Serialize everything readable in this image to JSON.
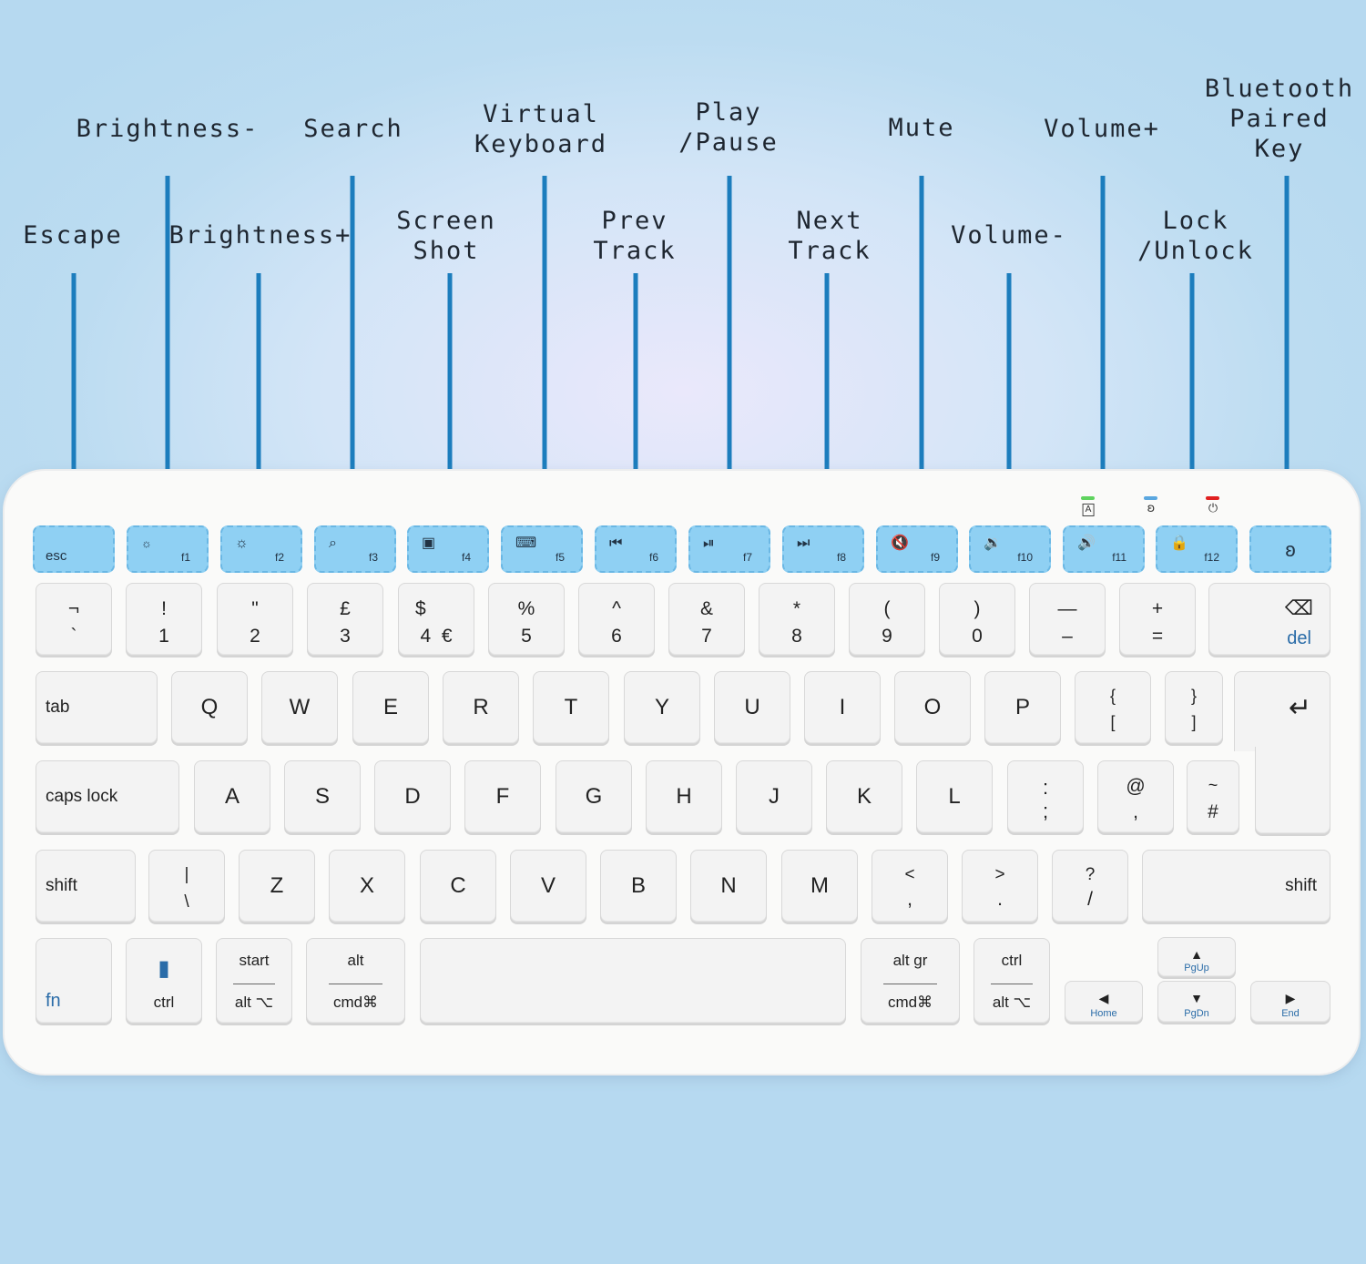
{
  "callouts": {
    "escape": "Escape",
    "brightness_minus": "Brightness-",
    "brightness_plus": "Brightness+",
    "search": "Search",
    "screen_shot": "Screen\nShot",
    "virtual_keyboard": "Virtual\nKeyboard",
    "prev_track": "Prev\nTrack",
    "play_pause": "Play\n/Pause",
    "next_track": "Next\nTrack",
    "mute": "Mute",
    "volume_minus": "Volume-",
    "volume_plus": "Volume+",
    "lock_unlock": "Lock\n/Unlock",
    "bluetooth": "Bluetooth\nPaired\nKey"
  },
  "colors": {
    "callout_line": "#1c7dbd",
    "function_key": "#8fd0f3",
    "led_caps": "#5fd35f",
    "led_bluetooth": "#5aa7e0",
    "led_power": "#e02020"
  },
  "fkeys": {
    "esc": "esc",
    "f1": "f1",
    "f2": "f2",
    "f3": "f3",
    "f4": "f4",
    "f5": "f5",
    "f6": "f6",
    "f7": "f7",
    "f8": "f8",
    "f9": "f9",
    "f10": "f10",
    "f11": "f11",
    "f12": "f12"
  },
  "icons": {
    "brightness_down": "☼",
    "brightness_up": "☼",
    "search": "⌕",
    "camera": "▣",
    "keyboard": "⌨",
    "prev": "⏮",
    "play_pause": "⏯",
    "next": "⏭",
    "mute": "🔇",
    "vol_down": "🔉",
    "vol_up": "🔊",
    "lock": "🔒",
    "bluetooth": "ʚ",
    "caps_led": "A",
    "bt_led": "ʚ",
    "power_led": "⏻",
    "backspace": "⌫",
    "enter": "↵",
    "battery": "▮"
  },
  "row1": {
    "k0": {
      "top": "¬",
      "bot": "`"
    },
    "k1": {
      "top": "!",
      "bot": "1"
    },
    "k2": {
      "top": "\"",
      "bot": "2"
    },
    "k3": {
      "top": "£",
      "bot": "3"
    },
    "k4": {
      "top": "$",
      "bot": "4  €"
    },
    "k5": {
      "top": "%",
      "bot": "5"
    },
    "k6": {
      "top": "^",
      "bot": "6"
    },
    "k7": {
      "top": "&",
      "bot": "7"
    },
    "k8": {
      "top": "*",
      "bot": "8"
    },
    "k9": {
      "top": "(",
      "bot": "9"
    },
    "k10": {
      "top": ")",
      "bot": "0"
    },
    "k11": {
      "top": "—",
      "bot": "–"
    },
    "k12": {
      "top": "+",
      "bot": "="
    },
    "del": "del"
  },
  "row2": {
    "tab": "tab",
    "q": "Q",
    "w": "W",
    "e": "E",
    "r": "R",
    "t": "T",
    "y": "Y",
    "u": "U",
    "i": "I",
    "o": "O",
    "p": "P",
    "brl": {
      "top": "{",
      "bot": "["
    },
    "brr": {
      "top": "}",
      "bot": "]"
    }
  },
  "row3": {
    "caps": "caps lock",
    "a": "A",
    "s": "S",
    "d": "D",
    "f": "F",
    "g": "G",
    "h": "H",
    "j": "J",
    "k": "K",
    "l": "L",
    "semi": {
      "top": ":",
      "bot": ";"
    },
    "quote": {
      "top": "@",
      "bot": ","
    },
    "hash": {
      "top": "~",
      "bot": "#"
    }
  },
  "row4": {
    "shift_l": "shift",
    "bslash": {
      "top": "|",
      "bot": "\\"
    },
    "z": "Z",
    "x": "X",
    "c": "C",
    "v": "V",
    "b": "B",
    "n": "N",
    "m": "M",
    "comma": {
      "top": "<",
      "bot": ","
    },
    "period": {
      "top": ">",
      "bot": "."
    },
    "slash": {
      "top": "?",
      "bot": "/"
    },
    "shift_r": "shift"
  },
  "row5": {
    "fn": "fn",
    "ctrl": "ctrl",
    "start": {
      "top": "start",
      "bot": "alt ⌥"
    },
    "alt": {
      "top": "alt",
      "bot": "cmd⌘"
    },
    "altgr": {
      "top": "alt gr",
      "bot": "cmd⌘"
    },
    "ctrl_r": {
      "top": "ctrl",
      "bot": "alt ⌥"
    },
    "home": {
      "arrow": "◀",
      "label": "Home"
    },
    "pgup": {
      "arrow": "▲",
      "label": "PgUp"
    },
    "pgdn": {
      "arrow": "▼",
      "label": "PgDn"
    },
    "end": {
      "arrow": "▶",
      "label": "End"
    }
  }
}
